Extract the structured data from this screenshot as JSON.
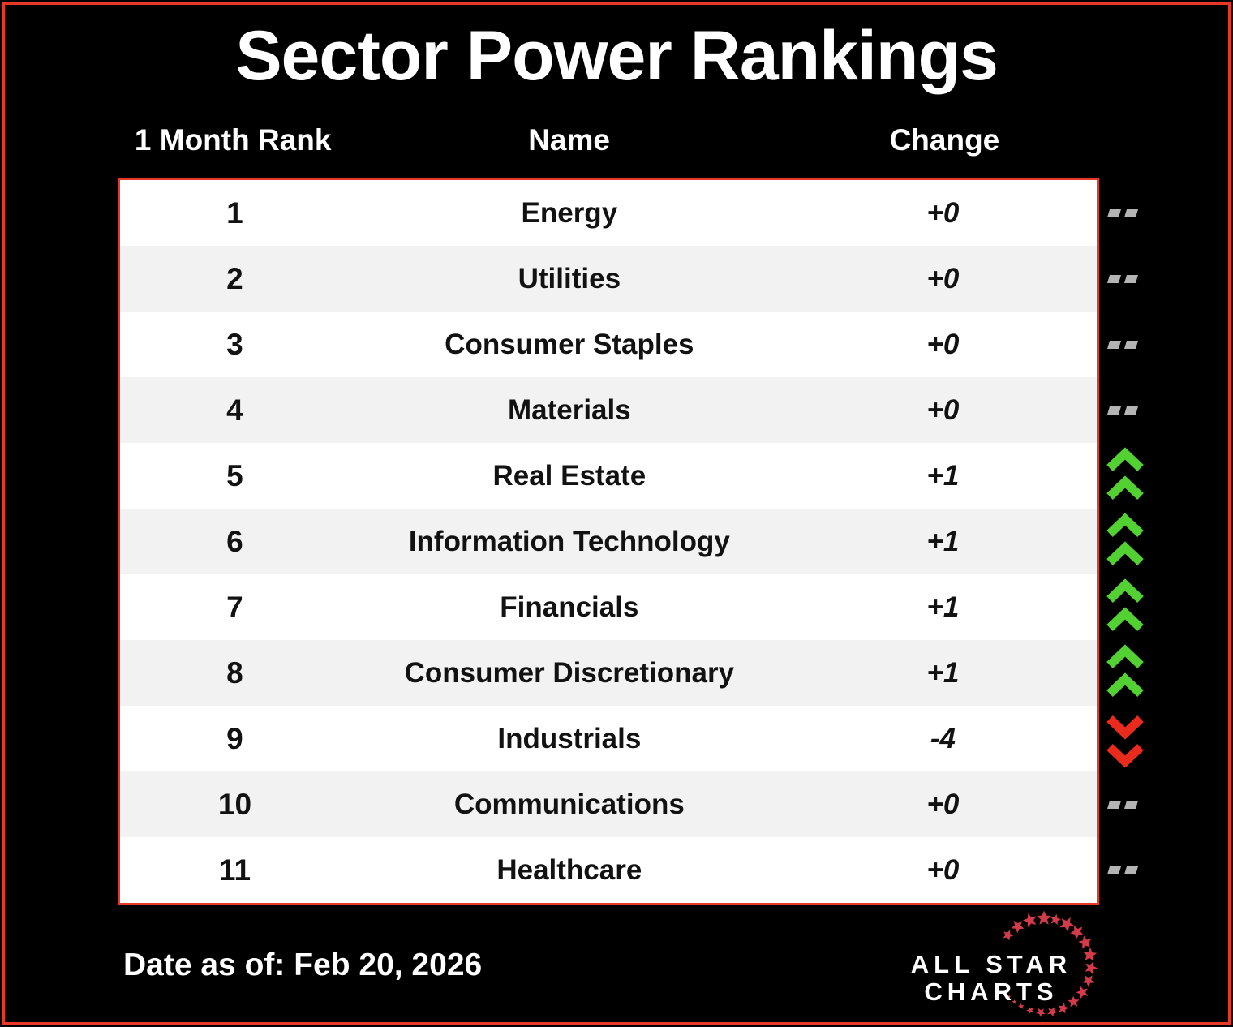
{
  "title": "Sector Power Rankings",
  "header": {
    "rank": "1 Month Rank",
    "name": "Name",
    "change": "Change"
  },
  "rows": [
    {
      "rank": "1",
      "name": "Energy",
      "change": "+0",
      "indicator": "flat"
    },
    {
      "rank": "2",
      "name": "Utilities",
      "change": "+0",
      "indicator": "flat"
    },
    {
      "rank": "3",
      "name": "Consumer Staples",
      "change": "+0",
      "indicator": "flat"
    },
    {
      "rank": "4",
      "name": "Materials",
      "change": "+0",
      "indicator": "flat"
    },
    {
      "rank": "5",
      "name": "Real Estate",
      "change": "+1",
      "indicator": "up"
    },
    {
      "rank": "6",
      "name": "Information Technology",
      "change": "+1",
      "indicator": "up"
    },
    {
      "rank": "7",
      "name": "Financials",
      "change": "+1",
      "indicator": "up"
    },
    {
      "rank": "8",
      "name": "Consumer Discretionary",
      "change": "+1",
      "indicator": "up"
    },
    {
      "rank": "9",
      "name": "Industrials",
      "change": "-4",
      "indicator": "down"
    },
    {
      "rank": "10",
      "name": "Communications",
      "change": "+0",
      "indicator": "flat"
    },
    {
      "rank": "11",
      "name": "Healthcare",
      "change": "+0",
      "indicator": "flat"
    }
  ],
  "footer": {
    "date": "Date as of: Feb 20, 2026"
  },
  "logo": {
    "line1": "ALL STAR",
    "line2": "CHARTS"
  },
  "colors": {
    "up": "#53d133",
    "down": "#e92b1d",
    "flat": "#b4b4b4",
    "frame_red": "#e8382a",
    "star_red": "#d23b49",
    "row_alt": "#f2f2f2"
  },
  "chart_data": {
    "type": "table",
    "title": "Sector Power Rankings",
    "columns": [
      "1 Month Rank",
      "Name",
      "Change"
    ],
    "rows": [
      [
        1,
        "Energy",
        "+0"
      ],
      [
        2,
        "Utilities",
        "+0"
      ],
      [
        3,
        "Consumer Staples",
        "+0"
      ],
      [
        4,
        "Materials",
        "+0"
      ],
      [
        5,
        "Real Estate",
        "+1"
      ],
      [
        6,
        "Information Technology",
        "+1"
      ],
      [
        7,
        "Financials",
        "+1"
      ],
      [
        8,
        "Consumer Discretionary",
        "+1"
      ],
      [
        9,
        "Industrials",
        "-4"
      ],
      [
        10,
        "Communications",
        "+0"
      ],
      [
        11,
        "Healthcare",
        "+0"
      ]
    ],
    "annotations": "Date as of: Feb 20, 2026"
  }
}
